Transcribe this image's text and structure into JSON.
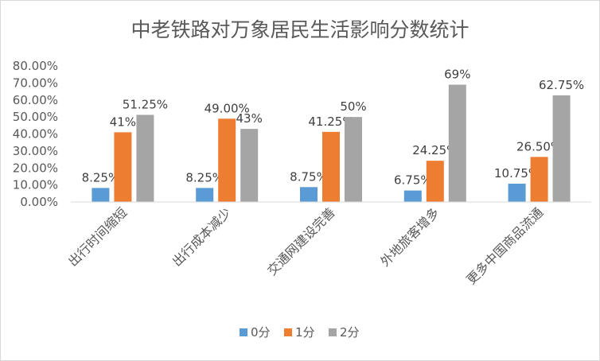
{
  "chart_data": {
    "type": "bar",
    "title": "中老铁路对万象居民生活影响分数统计",
    "xlabel": "",
    "ylabel": "",
    "ylim": [
      0,
      80
    ],
    "yticks": [
      "0.00%",
      "10.00%",
      "20.00%",
      "30.00%",
      "40.00%",
      "50.00%",
      "60.00%",
      "70.00%",
      "80.00%"
    ],
    "grid": false,
    "legend_position": "bottom",
    "categories": [
      "出行时间缩短",
      "出行成本减少",
      "交通网建设完善",
      "外地旅客增多",
      "更多中国商品流通"
    ],
    "series": [
      {
        "name": "0分",
        "color": "#5b9bd5",
        "values": [
          8.25,
          8.25,
          8.75,
          6.75,
          10.75
        ],
        "labels": [
          "8.25%",
          "8.25%",
          "8.75%",
          "6.75%",
          "10.75%"
        ]
      },
      {
        "name": "1分",
        "color": "#ed7d31",
        "values": [
          41,
          49,
          41.25,
          24.25,
          26.5
        ],
        "labels": [
          "41%",
          "49.00%",
          "41.25%",
          "24.25%",
          "26.50%"
        ]
      },
      {
        "name": "2分",
        "color": "#a5a5a5",
        "values": [
          51.25,
          43,
          50,
          69,
          62.75
        ],
        "labels": [
          "51.25%",
          "43%",
          "50%",
          "69%",
          "62.75%"
        ]
      }
    ]
  }
}
